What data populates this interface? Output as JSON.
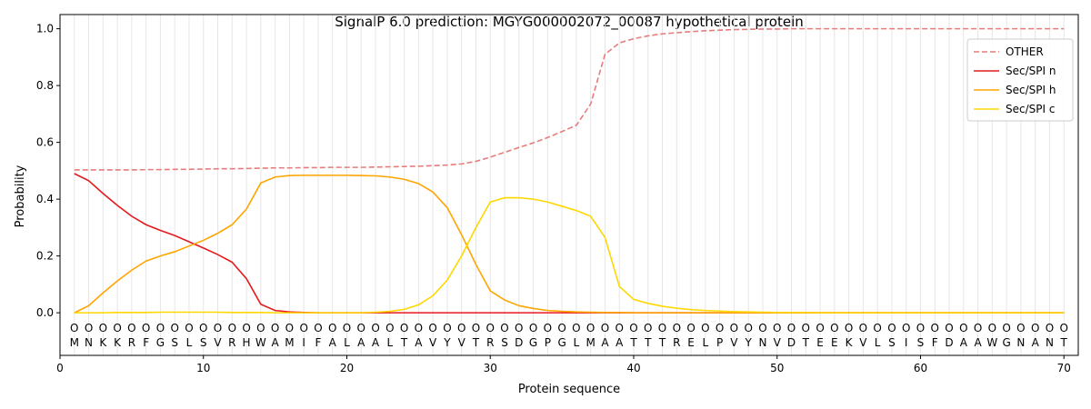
{
  "chart_data": {
    "type": "line",
    "title": "SignalP 6.0 prediction: MGYG000002072_00087 hypothetical protein",
    "xlabel": "Protein sequence",
    "ylabel": "Probability",
    "xlim": [
      0,
      71
    ],
    "ylim": [
      -0.15,
      1.05
    ],
    "xticks": [
      0,
      10,
      20,
      30,
      40,
      50,
      60,
      70
    ],
    "yticks": [
      0.0,
      0.2,
      0.4,
      0.6,
      0.8,
      1.0
    ],
    "ytick_labels": [
      "0.0",
      "0.2",
      "0.4",
      "0.6",
      "0.8",
      "1.0"
    ],
    "grid": "vertical lines at each residue",
    "legend_position": "top-right",
    "sequence": [
      "M",
      "N",
      "K",
      "K",
      "R",
      "F",
      "G",
      "S",
      "L",
      "S",
      "V",
      "R",
      "H",
      "W",
      "A",
      "M",
      "I",
      "F",
      "A",
      "L",
      "A",
      "A",
      "L",
      "T",
      "A",
      "V",
      "Y",
      "V",
      "T",
      "R",
      "S",
      "D",
      "G",
      "P",
      "G",
      "L",
      "M",
      "A",
      "A",
      "T",
      "T",
      "T",
      "R",
      "E",
      "L",
      "P",
      "V",
      "Y",
      "N",
      "V",
      "D",
      "T",
      "E",
      "E",
      "K",
      "V",
      "L",
      "S",
      "I",
      "S",
      "F",
      "D",
      "A",
      "A",
      "W",
      "G",
      "N",
      "A",
      "N",
      "T"
    ],
    "region_labels_char": "O",
    "series": [
      {
        "name": "OTHER",
        "color": "#e77c7c",
        "dashed": true,
        "values": [
          0.503,
          0.503,
          0.503,
          0.503,
          0.503,
          0.504,
          0.504,
          0.505,
          0.505,
          0.506,
          0.507,
          0.507,
          0.508,
          0.509,
          0.51,
          0.51,
          0.511,
          0.511,
          0.512,
          0.512,
          0.512,
          0.513,
          0.514,
          0.515,
          0.516,
          0.518,
          0.52,
          0.524,
          0.533,
          0.548,
          0.565,
          0.582,
          0.598,
          0.617,
          0.638,
          0.66,
          0.735,
          0.91,
          0.95,
          0.965,
          0.975,
          0.982,
          0.986,
          0.99,
          0.993,
          0.995,
          0.997,
          0.998,
          0.999,
          0.999,
          1.0,
          1.0,
          1.0,
          1.0,
          1.0,
          1.0,
          1.0,
          1.0,
          1.0,
          1.0,
          1.0,
          1.0,
          1.0,
          1.0,
          1.0,
          1.0,
          1.0,
          1.0,
          1.0,
          1.0
        ]
      },
      {
        "name": "Sec/SPI n",
        "color": "#e41a1c",
        "dashed": false,
        "values": [
          0.49,
          0.465,
          0.42,
          0.378,
          0.34,
          0.31,
          0.29,
          0.272,
          0.25,
          0.228,
          0.205,
          0.178,
          0.12,
          0.03,
          0.008,
          0.003,
          0.001,
          0.0,
          0.0,
          0.0,
          0.0,
          0.0,
          0.0,
          0.0,
          0.0,
          0.0,
          0.0,
          0.0,
          0.0,
          0.0,
          0.0,
          0.0,
          0.0,
          0.0,
          0.0,
          0.0,
          0.0,
          0.0,
          0.0,
          0.0,
          0.0,
          0.0,
          0.0,
          0.0,
          0.0,
          0.0,
          0.0,
          0.0,
          0.0,
          0.0,
          0.0,
          0.0,
          0.0,
          0.0,
          0.0,
          0.0,
          0.0,
          0.0,
          0.0,
          0.0,
          0.0,
          0.0,
          0.0,
          0.0,
          0.0,
          0.0,
          0.0,
          0.0,
          0.0,
          0.0
        ]
      },
      {
        "name": "Sec/SPI h",
        "color": "#ffa500",
        "dashed": false,
        "values": [
          0.0,
          0.025,
          0.07,
          0.112,
          0.15,
          0.182,
          0.2,
          0.215,
          0.235,
          0.255,
          0.28,
          0.31,
          0.365,
          0.457,
          0.478,
          0.483,
          0.484,
          0.484,
          0.484,
          0.484,
          0.483,
          0.482,
          0.478,
          0.47,
          0.455,
          0.425,
          0.37,
          0.275,
          0.17,
          0.077,
          0.045,
          0.025,
          0.015,
          0.008,
          0.005,
          0.003,
          0.002,
          0.001,
          0.001,
          0.0,
          0.0,
          0.0,
          0.0,
          0.0,
          0.0,
          0.0,
          0.0,
          0.0,
          0.0,
          0.0,
          0.0,
          0.0,
          0.0,
          0.0,
          0.0,
          0.0,
          0.0,
          0.0,
          0.0,
          0.0,
          0.0,
          0.0,
          0.0,
          0.0,
          0.0,
          0.0,
          0.0,
          0.0,
          0.0,
          0.0
        ]
      },
      {
        "name": "Sec/SPI c",
        "color": "#ffd700",
        "dashed": false,
        "values": [
          0.0,
          0.0,
          0.0,
          0.001,
          0.001,
          0.001,
          0.002,
          0.002,
          0.002,
          0.002,
          0.002,
          0.001,
          0.001,
          0.001,
          0.0,
          0.0,
          0.0,
          0.0,
          0.0,
          0.0,
          0.0,
          0.002,
          0.005,
          0.012,
          0.028,
          0.06,
          0.115,
          0.2,
          0.3,
          0.39,
          0.405,
          0.405,
          0.4,
          0.39,
          0.375,
          0.36,
          0.34,
          0.265,
          0.093,
          0.047,
          0.033,
          0.023,
          0.016,
          0.011,
          0.008,
          0.006,
          0.004,
          0.003,
          0.002,
          0.001,
          0.001,
          0.001,
          0.0,
          0.0,
          0.0,
          0.0,
          0.0,
          0.0,
          0.0,
          0.0,
          0.0,
          0.0,
          0.0,
          0.0,
          0.0,
          0.0,
          0.0,
          0.0,
          0.0,
          0.0
        ]
      }
    ]
  }
}
